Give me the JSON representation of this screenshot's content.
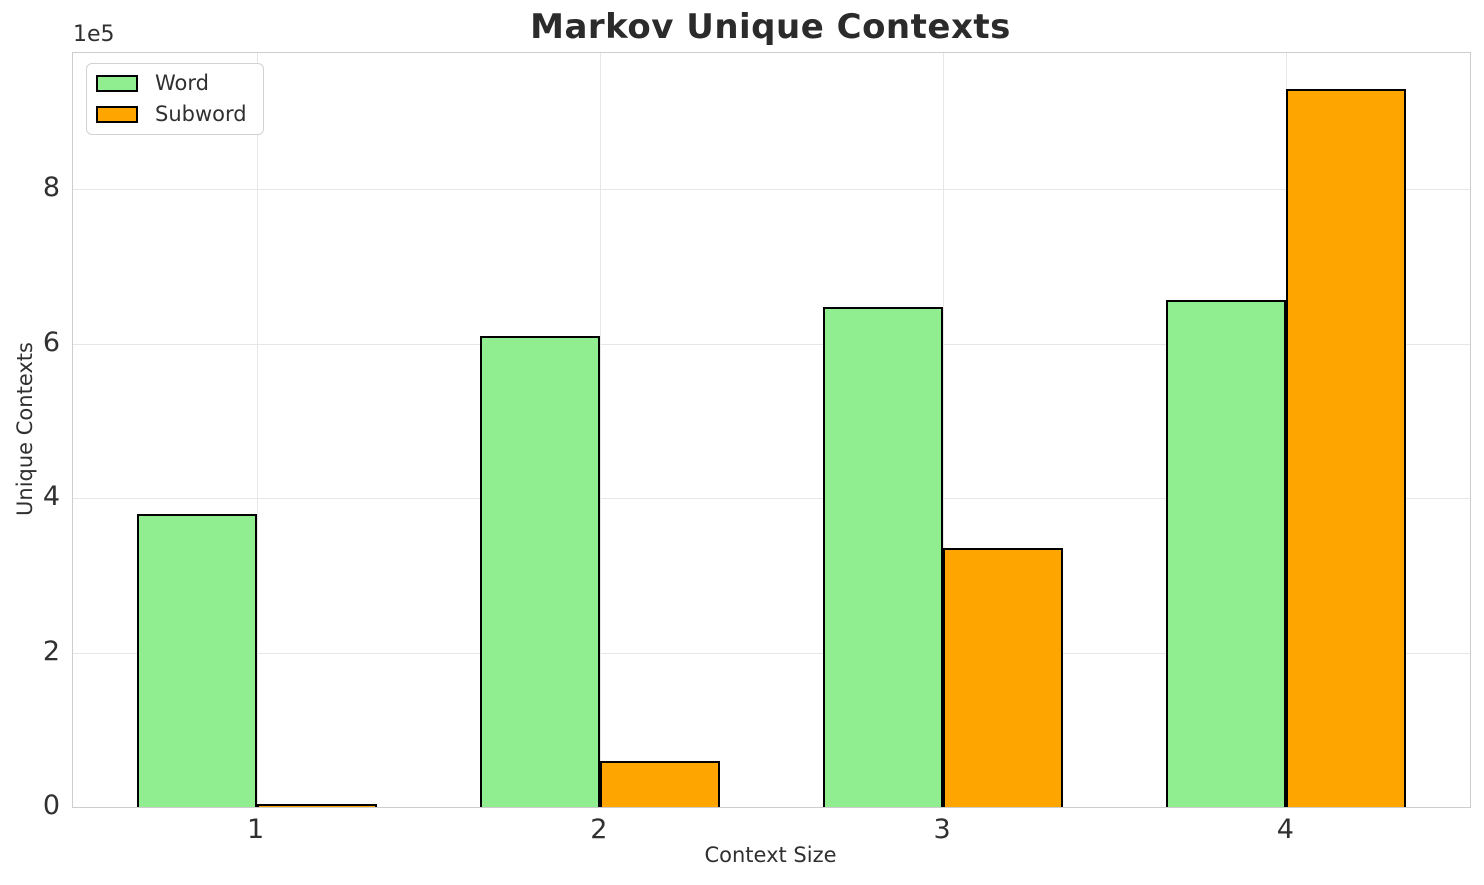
{
  "chart_data": {
    "type": "bar",
    "title": "Markov Unique Contexts",
    "xlabel": "Context Size",
    "ylabel": "Unique Contexts",
    "categories": [
      "1",
      "2",
      "3",
      "4"
    ],
    "series": [
      {
        "name": "Word",
        "color": "#90EE90",
        "values": [
          380000,
          610000,
          647000,
          657000
        ]
      },
      {
        "name": "Subword",
        "color": "#FFA500",
        "values": [
          3500,
          60000,
          335000,
          930000
        ]
      }
    ],
    "bar_width_fraction": 0.35,
    "edge_color": "#000000",
    "xlim": [
      0.465,
      4.535
    ],
    "ylim": [
      0,
      976500
    ],
    "xticks": {
      "values": [
        1,
        2,
        3,
        4
      ],
      "labels": [
        "1",
        "2",
        "3",
        "4"
      ]
    },
    "yticks": {
      "values": [
        0,
        200000,
        400000,
        600000,
        800000
      ],
      "labels": [
        "0",
        "2",
        "4",
        "6",
        "8"
      ],
      "offset_text": "1e5"
    },
    "grid": true,
    "legend": {
      "position": "upper-left",
      "entries": [
        "Word",
        "Subword"
      ]
    },
    "colors": {
      "grid": "#e7e7e7",
      "spine": "#cdcdcd",
      "text": "#303030",
      "title_text": "#2b2b2b"
    }
  }
}
